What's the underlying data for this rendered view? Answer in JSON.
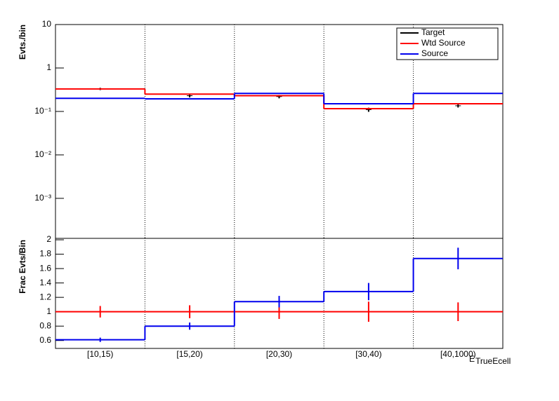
{
  "chart_data": [
    {
      "type": "step",
      "y_label": "Evts./bin",
      "log_y": true,
      "legend": "top-right",
      "ylim": [
        0.00012,
        10
      ],
      "yticks": [
        {
          "value": 0.001,
          "label": "10⁻³"
        },
        {
          "value": 0.01,
          "label": "10⁻²"
        },
        {
          "value": 0.1,
          "label": "10⁻¹"
        },
        1,
        10
      ],
      "series": [
        {
          "name": "Target",
          "color": "#000000",
          "style": "points",
          "values": [
            0.33,
            0.23,
            0.22,
            0.11,
            0.135
          ],
          "errors": [
            0.02,
            0.02,
            0.02,
            0.012,
            0.012
          ]
        },
        {
          "name": "Wtd Source",
          "color": "#ff0000",
          "style": "step",
          "values": [
            0.33,
            0.25,
            0.23,
            0.116,
            0.15
          ]
        },
        {
          "name": "Source",
          "color": "#0000ee",
          "style": "step",
          "values": [
            0.2,
            0.195,
            0.26,
            0.15,
            0.26
          ]
        }
      ]
    },
    {
      "type": "step",
      "y_label": "Frac Evts/Bin",
      "x_label": "E",
      "x_label_sub": "TrueEcell",
      "categories": [
        "[10,15)",
        "[15,20)",
        "[20,30)",
        "[30,40)",
        "[40,1000)"
      ],
      "ylim": [
        0.49,
        2.02
      ],
      "yticks": [
        0.6,
        0.8,
        1,
        1.2,
        1.4,
        1.6,
        1.8,
        2
      ],
      "series": [
        {
          "name": "Wtd Source",
          "color": "#ff0000",
          "style": "step",
          "values": [
            1,
            1,
            1,
            1,
            1
          ],
          "errors": [
            0.08,
            0.09,
            0.1,
            0.14,
            0.13
          ]
        },
        {
          "name": "Source",
          "color": "#0000ee",
          "style": "step",
          "values": [
            0.61,
            0.8,
            1.14,
            1.28,
            1.74
          ],
          "errors": [
            0.03,
            0.05,
            0.08,
            0.12,
            0.15
          ]
        }
      ]
    }
  ]
}
